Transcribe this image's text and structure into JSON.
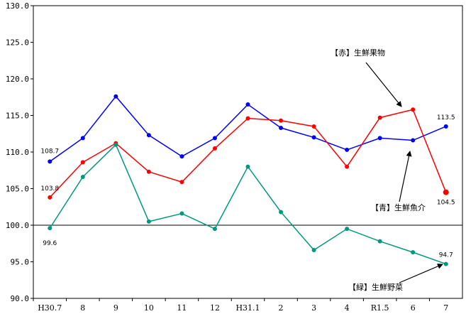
{
  "chart_data": {
    "type": "line",
    "categories": [
      "H30.7",
      "8",
      "9",
      "10",
      "11",
      "12",
      "H31.1",
      "2",
      "3",
      "4",
      "R1.5",
      "6",
      "7"
    ],
    "ylim": [
      90.0,
      130.0
    ],
    "yticks": [
      "130.0",
      "125.0",
      "120.0",
      "115.0",
      "110.0",
      "105.0",
      "100.0",
      "95.0",
      "90.0"
    ],
    "reference_line": 100.0,
    "series": [
      {
        "name": "【青】生鮮魚介",
        "color": "#0000ff",
        "values": [
          108.7,
          111.9,
          117.6,
          112.3,
          109.4,
          111.9,
          116.5,
          113.3,
          112.0,
          110.3,
          111.9,
          111.6,
          113.5
        ],
        "end_labels": {
          "first": "108.7",
          "last": "113.5"
        }
      },
      {
        "name": "【赤】生鮮果物",
        "color": "#ff0000",
        "values": [
          103.8,
          108.6,
          111.2,
          107.3,
          105.9,
          110.5,
          114.6,
          114.3,
          113.5,
          108.0,
          114.7,
          115.8,
          104.5
        ],
        "end_labels": {
          "first": "103.8",
          "last": "104.5"
        }
      },
      {
        "name": "【緑】生鮮野菜",
        "color": "#009980",
        "values": [
          99.6,
          106.6,
          111.0,
          100.5,
          101.6,
          99.5,
          108.0,
          101.8,
          96.6,
          99.5,
          97.8,
          96.3,
          94.7
        ],
        "end_labels": {
          "first": "99.6",
          "last": "94.7"
        }
      }
    ],
    "annotations": [
      {
        "text": "【赤】生鮮果物",
        "series": 1
      },
      {
        "text": "【青】生鮮魚介",
        "series": 0
      },
      {
        "text": "【緑】生鮮野菜",
        "series": 2
      }
    ]
  }
}
